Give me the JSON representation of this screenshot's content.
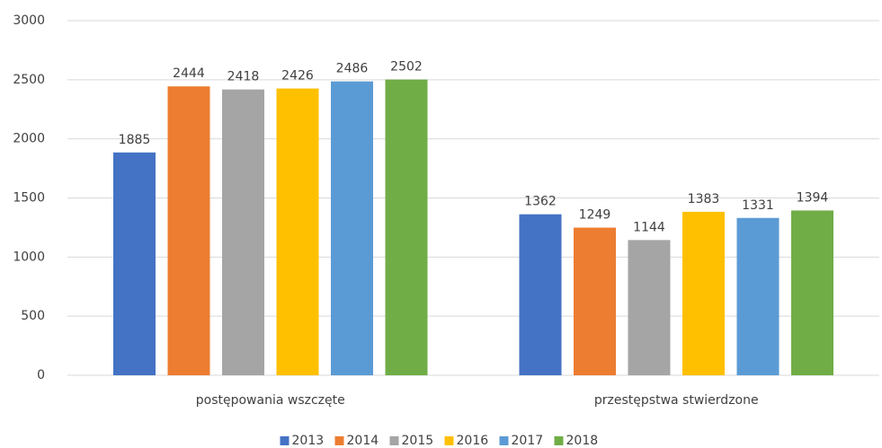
{
  "chart_data": {
    "type": "bar",
    "categories": [
      "postępowania wszczęte",
      "przestępstwa stwierdzone"
    ],
    "series": [
      {
        "name": "2013",
        "color": "#4472c4",
        "values": [
          1885,
          1362
        ]
      },
      {
        "name": "2014",
        "color": "#ed7d31",
        "values": [
          2444,
          1249
        ]
      },
      {
        "name": "2015",
        "color": "#a5a5a5",
        "values": [
          2418,
          1144
        ]
      },
      {
        "name": "2016",
        "color": "#ffc000",
        "values": [
          2426,
          1383
        ]
      },
      {
        "name": "2017",
        "color": "#5b9bd5",
        "values": [
          2486,
          1331
        ]
      },
      {
        "name": "2018",
        "color": "#70ad47",
        "values": [
          2502,
          1394
        ]
      }
    ],
    "ylim": [
      0,
      3000
    ],
    "yticks": [
      0,
      500,
      1000,
      1500,
      2000,
      2500,
      3000
    ],
    "grid": true,
    "legend": "bottom"
  }
}
